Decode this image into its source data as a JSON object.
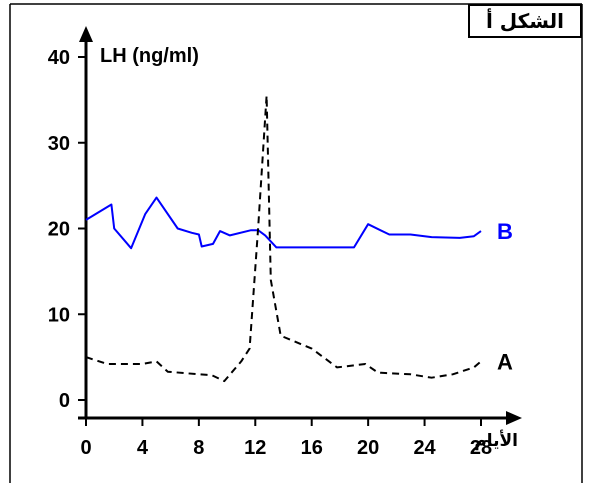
{
  "figure_label": "الشكل أ",
  "chart_data": {
    "type": "line",
    "title": "الشكل أ",
    "ylabel": "LH (ng/ml)",
    "xlabel": "الأيام",
    "xlim": [
      0,
      28
    ],
    "ylim": [
      0,
      40
    ],
    "x_ticks": [
      0,
      4,
      8,
      12,
      16,
      20,
      24,
      28
    ],
    "x_tick_labels": [
      "0",
      "4",
      "8",
      "12",
      "16",
      "20",
      "24",
      "28"
    ],
    "y_ticks": [
      0,
      10,
      20,
      30,
      40
    ],
    "y_tick_labels": [
      "0",
      "10",
      "20",
      "30",
      "40"
    ],
    "grid": false,
    "series": [
      {
        "name": "B",
        "style": "solid",
        "color": "#0000ff",
        "x": [
          0,
          1.8,
          2,
          3.2,
          4.2,
          5,
          6.5,
          7.5,
          8,
          8.2,
          9,
          9.5,
          10.2,
          11.7,
          12.2,
          12.7,
          13.5,
          16,
          19,
          20,
          21.5,
          23,
          24.5,
          26.5,
          27.5,
          28
        ],
        "y": [
          21,
          22.8,
          20,
          17.7,
          21.7,
          23.6,
          20,
          19.5,
          19.3,
          17.9,
          18.2,
          19.7,
          19.2,
          19.8,
          19.8,
          19.2,
          17.8,
          17.8,
          17.8,
          20.5,
          19.3,
          19.3,
          19,
          18.9,
          19.1,
          19.7
        ]
      },
      {
        "name": "A",
        "style": "dashed",
        "color": "#000000",
        "x": [
          0,
          1.5,
          3,
          4,
          5,
          5.8,
          8,
          8.9,
          9.8,
          11,
          11.6,
          12.2,
          12.8,
          13.1,
          13.8,
          16,
          17.8,
          19.8,
          20.7,
          23,
          24.5,
          26,
          27.5,
          28
        ],
        "y": [
          5,
          4.2,
          4.2,
          4.2,
          4.5,
          3.3,
          3,
          2.9,
          2.2,
          4.5,
          6,
          20,
          35.5,
          14,
          7.5,
          6,
          3.8,
          4.2,
          3.2,
          3,
          2.6,
          3,
          3.8,
          4.5
        ]
      }
    ]
  }
}
